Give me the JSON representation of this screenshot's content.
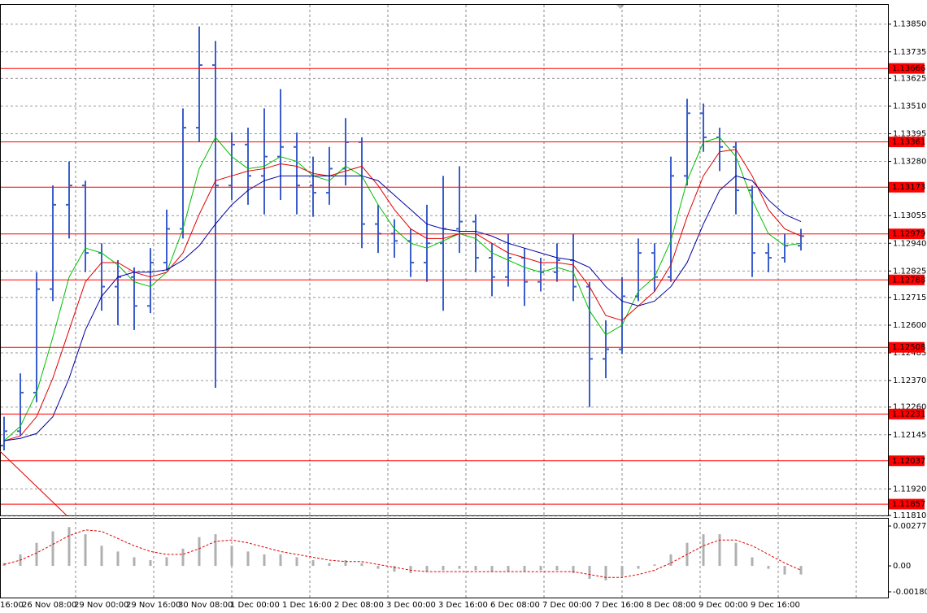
{
  "chart_data": [
    {
      "type": "ohlc",
      "candle_color": "#3a5fcd",
      "grid": true,
      "ylim": [
        1.1181,
        1.1393
      ],
      "yticks": [
        {
          "value": 1.1385,
          "label": "1.13850"
        },
        {
          "value": 1.13735,
          "label": "1.13735"
        },
        {
          "value": 1.13625,
          "label": "1.13625"
        },
        {
          "value": 1.1351,
          "label": "1.13510"
        },
        {
          "value": 1.13395,
          "label": "1.13395"
        },
        {
          "value": 1.1328,
          "label": "1.13280"
        },
        {
          "value": 1.13055,
          "label": "1.13055"
        },
        {
          "value": 1.1294,
          "label": "1.12940"
        },
        {
          "value": 1.12825,
          "label": "1.12825"
        },
        {
          "value": 1.12715,
          "label": "1.12715"
        },
        {
          "value": 1.126,
          "label": "1.12600"
        },
        {
          "value": 1.12485,
          "label": "1.12485"
        },
        {
          "value": 1.1237,
          "label": "1.12370"
        },
        {
          "value": 1.1226,
          "label": "1.12260"
        },
        {
          "value": 1.12145,
          "label": "1.12145"
        },
        {
          "value": 1.1192,
          "label": "1.11920"
        },
        {
          "value": 1.1181,
          "label": "1.11810"
        }
      ],
      "levels": {
        "color": "#ff0000",
        "values": [
          1.13666,
          1.13361,
          1.13173,
          1.12979,
          1.12788,
          1.12508,
          1.12231,
          1.12037,
          1.11857
        ]
      },
      "x_labels": [
        "16:00",
        "26 Nov 08:00",
        "29 Nov 00:00",
        "29 Nov 16:00",
        "30 Nov 08:00",
        "1 Dec 00:00",
        "1 Dec 16:00",
        "2 Dec 08:00",
        "3 Dec 00:00",
        "3 Dec 16:00",
        "6 Dec 08:00",
        "7 Dec 00:00",
        "7 Dec 16:00",
        "8 Dec 08:00",
        "9 Dec 00:00",
        "9 Dec 16:00"
      ],
      "open": [
        1.121,
        1.1216,
        1.1232,
        1.1275,
        1.131,
        1.1318,
        1.129,
        1.1276,
        1.128,
        1.1268,
        1.1286,
        1.13,
        1.1342,
        1.1368,
        1.1318,
        1.1335,
        1.1322,
        1.133,
        1.1334,
        1.1318,
        1.1315,
        1.1325,
        1.1336,
        1.1302,
        1.1298,
        1.1295,
        1.1286,
        1.1294,
        1.13,
        1.1303,
        1.1288,
        1.128,
        1.1288,
        1.1278,
        1.1282,
        1.1287,
        1.1276,
        1.1246,
        1.125,
        1.1272,
        1.129,
        1.128,
        1.1322,
        1.1348,
        1.1338,
        1.1334,
        1.1316,
        1.129,
        1.1288,
        1.1293
      ],
      "high": [
        1.1222,
        1.124,
        1.1282,
        1.1318,
        1.1328,
        1.132,
        1.1294,
        1.1287,
        1.1284,
        1.1292,
        1.1308,
        1.135,
        1.1384,
        1.1378,
        1.134,
        1.1342,
        1.135,
        1.1358,
        1.134,
        1.133,
        1.1334,
        1.1346,
        1.1338,
        1.131,
        1.1304,
        1.13,
        1.131,
        1.1322,
        1.1326,
        1.1306,
        1.1294,
        1.1298,
        1.1292,
        1.1288,
        1.1294,
        1.1298,
        1.1278,
        1.1262,
        1.128,
        1.1296,
        1.1294,
        1.133,
        1.1354,
        1.1352,
        1.1342,
        1.1336,
        1.1318,
        1.1294,
        1.1298,
        1.13
      ],
      "low": [
        1.1208,
        1.1214,
        1.1228,
        1.127,
        1.1296,
        1.1282,
        1.1266,
        1.126,
        1.1258,
        1.1265,
        1.1283,
        1.1296,
        1.1336,
        1.1234,
        1.1312,
        1.131,
        1.1306,
        1.1312,
        1.1306,
        1.1305,
        1.131,
        1.1318,
        1.1292,
        1.129,
        1.1288,
        1.128,
        1.1278,
        1.1266,
        1.129,
        1.1282,
        1.1272,
        1.1276,
        1.1268,
        1.1274,
        1.1278,
        1.127,
        1.1226,
        1.1238,
        1.1248,
        1.127,
        1.1274,
        1.1278,
        1.1318,
        1.1332,
        1.1324,
        1.1306,
        1.128,
        1.1282,
        1.1286,
        1.1291
      ],
      "close": [
        1.1216,
        1.1232,
        1.1275,
        1.131,
        1.1318,
        1.129,
        1.1276,
        1.128,
        1.1268,
        1.1286,
        1.13,
        1.1342,
        1.1368,
        1.1318,
        1.1335,
        1.1322,
        1.133,
        1.1334,
        1.1318,
        1.1315,
        1.1325,
        1.1336,
        1.1302,
        1.1298,
        1.1295,
        1.1286,
        1.1294,
        1.13,
        1.1303,
        1.1288,
        1.128,
        1.1288,
        1.1278,
        1.1282,
        1.1287,
        1.1276,
        1.1246,
        1.125,
        1.1272,
        1.129,
        1.128,
        1.1322,
        1.1348,
        1.1338,
        1.1334,
        1.1316,
        1.129,
        1.1288,
        1.1293,
        1.1297
      ],
      "series": [
        {
          "color": "#00c000",
          "values": [
            1.1212,
            1.1218,
            1.1232,
            1.1255,
            1.128,
            1.1292,
            1.129,
            1.1285,
            1.1278,
            1.1276,
            1.1282,
            1.13,
            1.1325,
            1.1338,
            1.133,
            1.1325,
            1.1326,
            1.133,
            1.1328,
            1.1322,
            1.132,
            1.1326,
            1.1322,
            1.131,
            1.13,
            1.1294,
            1.1292,
            1.1295,
            1.1298,
            1.1296,
            1.129,
            1.1287,
            1.1284,
            1.1282,
            1.1284,
            1.1282,
            1.1266,
            1.1256,
            1.126,
            1.1274,
            1.128,
            1.1295,
            1.132,
            1.1336,
            1.1338,
            1.133,
            1.1312,
            1.1298,
            1.1293,
            1.1294
          ]
        },
        {
          "color": "#e00000",
          "values": [
            1.1212,
            1.1214,
            1.1222,
            1.1238,
            1.1258,
            1.1278,
            1.1286,
            1.1286,
            1.1282,
            1.128,
            1.1282,
            1.129,
            1.1306,
            1.132,
            1.1322,
            1.1324,
            1.1325,
            1.1327,
            1.1326,
            1.1323,
            1.1322,
            1.1324,
            1.1326,
            1.1318,
            1.1308,
            1.13,
            1.1296,
            1.1296,
            1.1298,
            1.1298,
            1.1294,
            1.129,
            1.1288,
            1.1286,
            1.1286,
            1.1285,
            1.1276,
            1.1264,
            1.1262,
            1.1268,
            1.1274,
            1.1285,
            1.1305,
            1.1322,
            1.1332,
            1.1333,
            1.1322,
            1.1308,
            1.13,
            1.1297
          ]
        },
        {
          "color": "#0000a0",
          "values": [
            1.1212,
            1.1213,
            1.1215,
            1.1222,
            1.1238,
            1.1258,
            1.1272,
            1.128,
            1.1282,
            1.1282,
            1.1283,
            1.1287,
            1.1293,
            1.1302,
            1.131,
            1.1316,
            1.132,
            1.1322,
            1.1322,
            1.1322,
            1.1322,
            1.1322,
            1.1322,
            1.132,
            1.1314,
            1.1308,
            1.1302,
            1.13,
            1.1299,
            1.1299,
            1.1297,
            1.1294,
            1.1292,
            1.129,
            1.1288,
            1.1287,
            1.1284,
            1.1276,
            1.127,
            1.1268,
            1.127,
            1.1276,
            1.1286,
            1.1302,
            1.1316,
            1.1322,
            1.132,
            1.1312,
            1.1306,
            1.1303
          ]
        }
      ]
    },
    {
      "type": "oscillator",
      "color": "#b0b0b0",
      "ylim": [
        -0.0022,
        0.00328
      ],
      "yticks": [
        0.00277,
        {
          "value": 0,
          "label": "0.00"
        },
        -0.001803
      ],
      "values": [
        0.0002,
        0.0008,
        0.0016,
        0.0024,
        0.0027,
        0.0022,
        0.0014,
        0.001,
        0.0006,
        0.0004,
        0.0006,
        0.0012,
        0.002,
        0.0022,
        0.0014,
        0.001,
        0.0008,
        0.0008,
        0.0006,
        0.0004,
        0.0002,
        0.0004,
        0.0002,
        -0.0002,
        -0.0004,
        -0.0005,
        -0.0004,
        -0.0003,
        -0.0002,
        -0.0003,
        -0.0004,
        -0.0004,
        -0.0004,
        -0.0003,
        -0.0003,
        -0.0005,
        -0.0009,
        -0.001,
        -0.0007,
        -0.0002,
        0.0001,
        0.0008,
        0.0016,
        0.0022,
        0.0022,
        0.0016,
        0.0006,
        -0.0002,
        -0.0006,
        -0.0006
      ],
      "series": [
        {
          "color": "#e00000",
          "values": [
            0.0001,
            0.0004,
            0.0009,
            0.0015,
            0.0021,
            0.0025,
            0.0024,
            0.0019,
            0.0014,
            0.001,
            0.0008,
            0.0008,
            0.0012,
            0.0017,
            0.0018,
            0.0016,
            0.0013,
            0.001,
            0.0008,
            0.0006,
            0.0004,
            0.0003,
            0.0003,
            0.0001,
            -0.0001,
            -0.0003,
            -0.0004,
            -0.0004,
            -0.0004,
            -0.0004,
            -0.0004,
            -0.0004,
            -0.0004,
            -0.0004,
            -0.0004,
            -0.0004,
            -0.0006,
            -0.0008,
            -0.0008,
            -0.0006,
            -0.0003,
            0.0002,
            0.0008,
            0.0014,
            0.0018,
            0.0018,
            0.0014,
            0.0008,
            0.0002,
            -0.0003
          ]
        }
      ]
    }
  ]
}
